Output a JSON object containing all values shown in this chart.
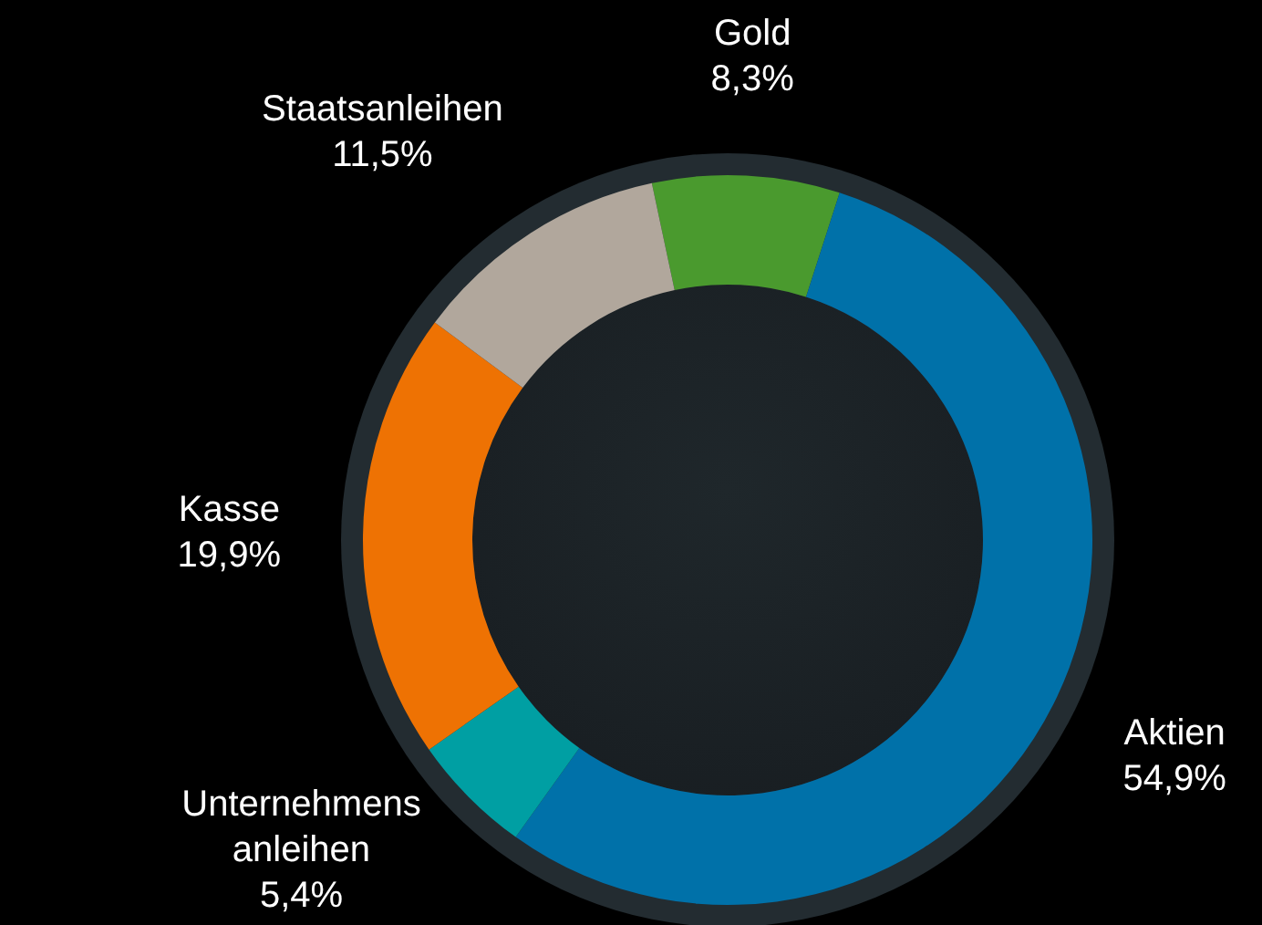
{
  "chart_data": {
    "type": "donut",
    "categories": [
      "Gold",
      "Aktien",
      "Unternehmens\nanleihen",
      "Kasse",
      "Staatsanleihen"
    ],
    "values": [
      8.3,
      54.9,
      5.4,
      19.9,
      11.5
    ],
    "colors": [
      "#4a9a2e",
      "#0071a9",
      "#009fa3",
      "#ee7203",
      "#b1a79c"
    ],
    "value_labels": [
      "8,3%",
      "54,9%",
      "5,4%",
      "19,9%",
      "11,5%"
    ],
    "legend": false
  }
}
